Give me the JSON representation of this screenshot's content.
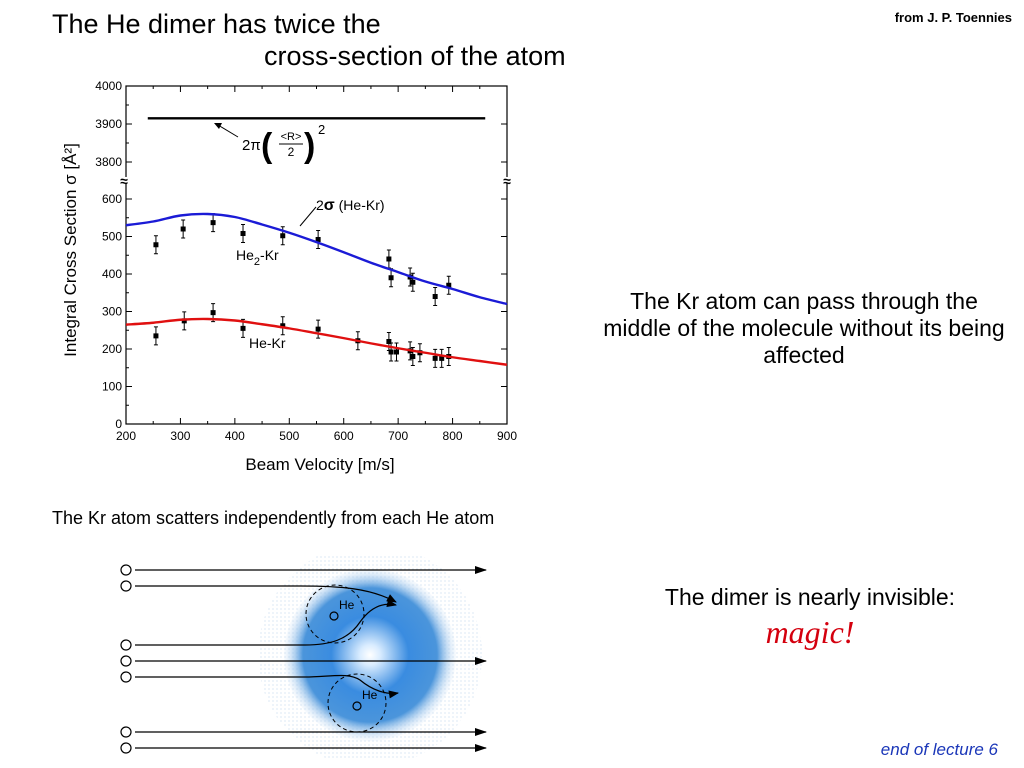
{
  "header": {
    "title_line1": "The He dimer has twice the",
    "title_line2": "cross-section of the atom",
    "credit": "from J. P. Toennies"
  },
  "chart_data": {
    "type": "scatter",
    "title": "",
    "xlabel": "Beam Velocity [m/s]",
    "ylabel": "Integral Cross Section σ [Å²]",
    "xlim": [
      200,
      900
    ],
    "ylim": [
      0,
      4000
    ],
    "axis_break": "broken y axis between 600 and 3800",
    "x_ticks": [
      "200",
      "300",
      "400",
      "500",
      "600",
      "700",
      "800",
      "900"
    ],
    "y_ticks_lower": [
      "0",
      "100",
      "200",
      "300",
      "400",
      "500",
      "600"
    ],
    "y_ticks_upper": [
      "3800",
      "3900",
      "4000"
    ],
    "grid": false,
    "series": [
      {
        "name": "He2-Kr",
        "color": "#000000",
        "points": [
          [
            255,
            478
          ],
          [
            305,
            520
          ],
          [
            360,
            537
          ],
          [
            415,
            508
          ],
          [
            488,
            502
          ],
          [
            553,
            492
          ],
          [
            683,
            440
          ],
          [
            687,
            390
          ],
          [
            722,
            392
          ],
          [
            727,
            378
          ],
          [
            768,
            340
          ],
          [
            793,
            370
          ]
        ]
      },
      {
        "name": "He-Kr",
        "color": "#000000",
        "points": [
          [
            255,
            235
          ],
          [
            307,
            275
          ],
          [
            360,
            297
          ],
          [
            415,
            255
          ],
          [
            488,
            262
          ],
          [
            553,
            253
          ],
          [
            626,
            222
          ],
          [
            683,
            220
          ],
          [
            687,
            192
          ],
          [
            697,
            192
          ],
          [
            722,
            195
          ],
          [
            727,
            180
          ],
          [
            740,
            190
          ],
          [
            768,
            175
          ],
          [
            780,
            175
          ],
          [
            793,
            180
          ]
        ]
      },
      {
        "name": "2σ (He-Kr)",
        "color": "#1b1bd6",
        "x": [
          200,
          250,
          300,
          350,
          400,
          450,
          500,
          550,
          600,
          650,
          700,
          750,
          800,
          850,
          900
        ],
        "y": [
          530,
          540,
          556,
          560,
          552,
          532,
          510,
          485,
          458,
          430,
          405,
          380,
          360,
          338,
          320
        ]
      },
      {
        "name": "He-Kr fit",
        "color": "#e01010",
        "x": [
          200,
          250,
          300,
          350,
          400,
          450,
          500,
          550,
          600,
          650,
          700,
          750,
          800,
          850,
          900
        ],
        "y": [
          265,
          270,
          278,
          280,
          276,
          266,
          255,
          242,
          229,
          215,
          202,
          190,
          178,
          168,
          158
        ]
      },
      {
        "name": "2π(<R>/2)²",
        "color": "#000000",
        "x": [
          240,
          860
        ],
        "y": [
          3915,
          3915
        ]
      }
    ],
    "annotations": {
      "blue_label_2": "2",
      "blue_label_sigma": "σ",
      "blue_label_rest": " (He-Kr)",
      "dimer_label_he": "He",
      "dimer_label_sub": "2",
      "dimer_label_kr": "-Kr",
      "atom_label": "He-Kr",
      "formula_2pi": "2π",
      "formula_num": "<R>",
      "formula_den": "2",
      "formula_exp": "2",
      "break_mark": "≈"
    }
  },
  "side_text_1": "The Kr atom can pass through the middle of the molecule without its being affected",
  "diagram": {
    "caption": "The Kr atom scatters independently from each He atom",
    "he_upper_label": "He",
    "he_lower_label": "He",
    "glow_color": "#2f7fd6"
  },
  "side_text_2": "The dimer is nearly invisible:",
  "magic_text": "magic!",
  "footer": {
    "end_note": "end of lecture 6"
  }
}
